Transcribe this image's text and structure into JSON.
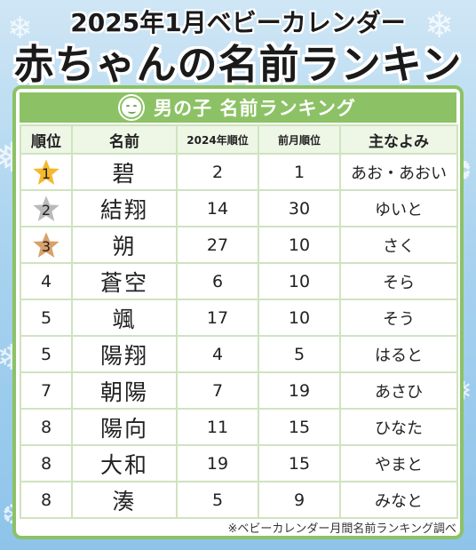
{
  "header": {
    "title_line1": "2025年1月ベビーカレンダー",
    "title_line2": "赤ちゃんの名前ランキング"
  },
  "panel": {
    "title": "男の子 名前ランキング",
    "icon": "smiley-face-icon",
    "accent_color": "#8cc265"
  },
  "table": {
    "headers": [
      "順位",
      "名前",
      "2024年順位",
      "前月順位",
      "主なよみ"
    ],
    "rows": [
      {
        "rank": "1",
        "name": "碧",
        "rank_2024": "2",
        "prev_month": "1",
        "reading": "あお・あおい",
        "medal": "gold"
      },
      {
        "rank": "2",
        "name": "結翔",
        "rank_2024": "14",
        "prev_month": "30",
        "reading": "ゆいと",
        "medal": "silver"
      },
      {
        "rank": "3",
        "name": "朔",
        "rank_2024": "27",
        "prev_month": "10",
        "reading": "さく",
        "medal": "bronze"
      },
      {
        "rank": "4",
        "name": "蒼空",
        "rank_2024": "6",
        "prev_month": "10",
        "reading": "そら",
        "medal": ""
      },
      {
        "rank": "5",
        "name": "颯",
        "rank_2024": "17",
        "prev_month": "10",
        "reading": "そう",
        "medal": ""
      },
      {
        "rank": "5",
        "name": "陽翔",
        "rank_2024": "4",
        "prev_month": "5",
        "reading": "はると",
        "medal": ""
      },
      {
        "rank": "7",
        "name": "朝陽",
        "rank_2024": "7",
        "prev_month": "19",
        "reading": "あさひ",
        "medal": ""
      },
      {
        "rank": "8",
        "name": "陽向",
        "rank_2024": "11",
        "prev_month": "15",
        "reading": "ひなた",
        "medal": ""
      },
      {
        "rank": "8",
        "name": "大和",
        "rank_2024": "19",
        "prev_month": "15",
        "reading": "やまと",
        "medal": ""
      },
      {
        "rank": "8",
        "name": "湊",
        "rank_2024": "5",
        "prev_month": "9",
        "reading": "みなと",
        "medal": ""
      }
    ],
    "medal_colors": {
      "gold": "#f5b82e",
      "silver": "#b9b9b9",
      "bronze": "#d9a16a"
    }
  },
  "footer": {
    "note": "※ベビーカレンダー月間名前ランキング調べ"
  }
}
